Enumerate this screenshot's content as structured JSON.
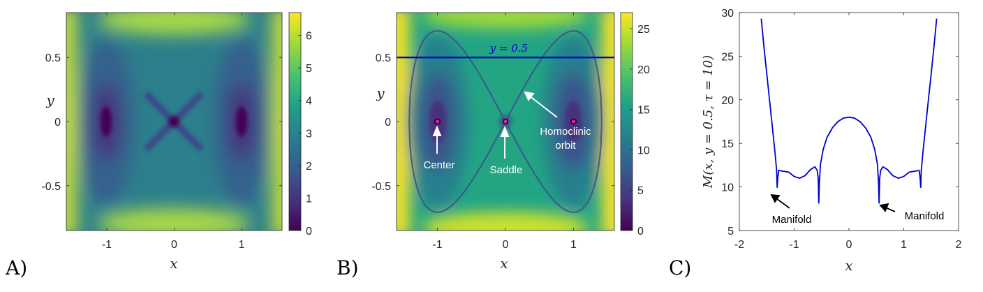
{
  "panel_labels": [
    "A)",
    "B)",
    "C)"
  ],
  "chart_data": [
    {
      "type": "heatmap",
      "panel": "A)",
      "xlabel": "x",
      "ylabel": "y",
      "xlim": [
        -1.6,
        1.6
      ],
      "ylim": [
        -0.85,
        0.85
      ],
      "xticks": [
        -1,
        0,
        1
      ],
      "xtick_labels": [
        "-1",
        "0",
        "1"
      ],
      "yticks": [
        -0.5,
        0,
        0.5
      ],
      "ytick_labels": [
        "-0.5",
        "0",
        "0.5"
      ],
      "colorbar": {
        "min": 0,
        "max": 6.7,
        "ticks": [
          0,
          1,
          2,
          3,
          4,
          5,
          6
        ],
        "tick_labels": [
          "0",
          "1",
          "2",
          "3",
          "4",
          "5",
          "6"
        ]
      },
      "colormap": [
        "#440154",
        "#46327e",
        "#365c8d",
        "#277f8e",
        "#1fa187",
        "#4ac16d",
        "#a0da39",
        "#fde725"
      ]
    },
    {
      "type": "heatmap",
      "panel": "B)",
      "xlabel": "x",
      "ylabel": "y",
      "xlim": [
        -1.6,
        1.6
      ],
      "ylim": [
        -0.85,
        0.85
      ],
      "xticks": [
        -1,
        0,
        1
      ],
      "xtick_labels": [
        "-1",
        "0",
        "1"
      ],
      "yticks": [
        -0.5,
        0,
        0.5
      ],
      "ytick_labels": [
        "-0.5",
        "0",
        "0.5"
      ],
      "colorbar": {
        "min": 0,
        "max": 27,
        "ticks": [
          0,
          5,
          10,
          15,
          20,
          25
        ],
        "tick_labels": [
          "0",
          "5",
          "10",
          "15",
          "20",
          "25"
        ]
      },
      "colormap": [
        "#440154",
        "#46327e",
        "#365c8d",
        "#277f8e",
        "#1fa187",
        "#4ac16d",
        "#a0da39",
        "#fde725"
      ],
      "horizontal_line": {
        "y": 0.5,
        "label": "y = 0.5",
        "color": "#0000cc"
      },
      "fixed_points": [
        {
          "x": -1,
          "y": 0,
          "label": "Center"
        },
        {
          "x": 0,
          "y": 0,
          "label": "Saddle"
        },
        {
          "x": 1,
          "y": 0
        }
      ],
      "homoclinic_label": [
        "Homoclinic",
        "orbit"
      ],
      "point_color": "#e0208a"
    },
    {
      "type": "line",
      "panel": "C)",
      "xlabel": "x",
      "ylabel": "M(x, y = 0.5, τ = 10)",
      "xlim": [
        -2,
        2
      ],
      "ylim": [
        5,
        30
      ],
      "xticks": [
        -2,
        -1,
        0,
        1,
        2
      ],
      "xtick_labels": [
        "-2",
        "-1",
        "0",
        "1",
        "2"
      ],
      "yticks": [
        5,
        10,
        15,
        20,
        25,
        30
      ],
      "ytick_labels": [
        "5",
        "10",
        "15",
        "20",
        "25",
        "30"
      ],
      "series": [
        {
          "color": "#0000cc",
          "x": [
            0,
            0.1,
            0.2,
            0.3,
            0.4,
            0.47,
            0.52,
            0.54,
            0.55,
            0.56,
            0.58,
            0.62,
            0.7,
            0.8,
            0.9,
            1.0,
            1.1,
            1.2,
            1.28,
            1.3,
            1.31,
            1.32,
            1.35,
            1.4,
            1.45,
            1.5,
            1.55,
            1.6
          ],
          "y": [
            18,
            17.9,
            17.5,
            16.8,
            15.7,
            14.3,
            12.6,
            10.5,
            8.1,
            11.0,
            11.9,
            12.3,
            12.0,
            11.3,
            11.0,
            11.2,
            11.7,
            11.8,
            11.9,
            11.0,
            9.9,
            11.9,
            14.0,
            17.0,
            20.0,
            23.0,
            26.0,
            29.3
          ]
        }
      ],
      "annotations": [
        {
          "text": "Manifold",
          "x": -1.32,
          "y": 9.9
        },
        {
          "text": "Manifold",
          "x": 0.55,
          "y": 8.1
        }
      ]
    }
  ]
}
